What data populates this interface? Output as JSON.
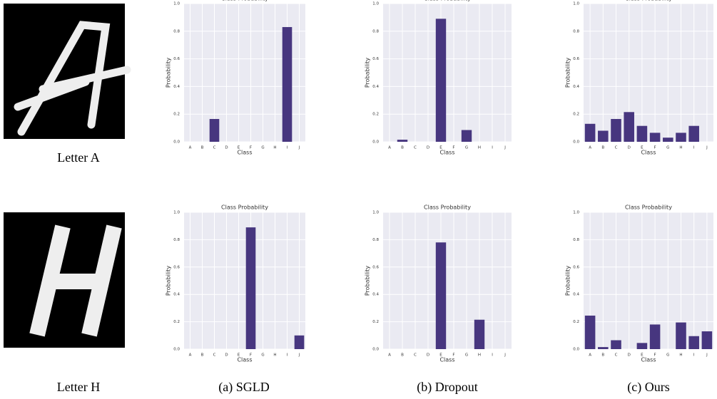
{
  "chart_data": [
    {
      "type": "bar",
      "title": "Class Probability",
      "x_label": "Class",
      "y_label": "Probability",
      "categories": [
        "A",
        "B",
        "C",
        "D",
        "E",
        "F",
        "G",
        "H",
        "I",
        "J"
      ],
      "values": [
        0,
        0,
        0.165,
        0,
        0,
        0,
        0,
        0,
        0.83,
        0
      ],
      "color": "#47367f",
      "ylim": [
        0,
        1
      ],
      "yticks": [
        {
          "value": 0,
          "label": "0.0"
        },
        0.2,
        0.4,
        0.6,
        0.8,
        {
          "value": 1,
          "label": "1.0"
        }
      ],
      "grid": true
    },
    {
      "type": "bar",
      "title": "Class Probability",
      "x_label": "Class",
      "y_label": "Probability",
      "categories": [
        "A",
        "B",
        "C",
        "D",
        "E",
        "F",
        "G",
        "H",
        "I",
        "J"
      ],
      "values": [
        0,
        0.015,
        0,
        0,
        0.89,
        0,
        0.085,
        0,
        0,
        0
      ],
      "color": "#47367f",
      "ylim": [
        0,
        1
      ],
      "yticks": [
        {
          "value": 0,
          "label": "0.0"
        },
        0.2,
        0.4,
        0.6,
        0.8,
        {
          "value": 1,
          "label": "1.0"
        }
      ],
      "grid": true
    },
    {
      "type": "bar",
      "title": "Class Probability",
      "x_label": "Class",
      "y_label": "Probability",
      "categories": [
        "A",
        "B",
        "C",
        "D",
        "E",
        "F",
        "G",
        "H",
        "I",
        "J"
      ],
      "values": [
        0.13,
        0.08,
        0.165,
        0.215,
        0.115,
        0.065,
        0.03,
        0.065,
        0.115,
        0
      ],
      "color": "#47367f",
      "ylim": [
        0,
        1
      ],
      "yticks": [
        {
          "value": 0,
          "label": "0.0"
        },
        0.2,
        0.4,
        0.6,
        0.8,
        {
          "value": 1,
          "label": "1.0"
        }
      ],
      "grid": true
    },
    {
      "type": "bar",
      "title": "Class Probability",
      "x_label": "Class",
      "y_label": "Probability",
      "categories": [
        "A",
        "B",
        "C",
        "D",
        "E",
        "F",
        "G",
        "H",
        "I",
        "J"
      ],
      "values": [
        0,
        0,
        0,
        0,
        0,
        0.89,
        0,
        0,
        0,
        0.1
      ],
      "color": "#47367f",
      "ylim": [
        0,
        1
      ],
      "yticks": [
        {
          "value": 0,
          "label": "0.0"
        },
        0.2,
        0.4,
        0.6,
        0.8,
        {
          "value": 1,
          "label": "1.0"
        }
      ],
      "grid": true
    },
    {
      "type": "bar",
      "title": "Class Probability",
      "x_label": "Class",
      "y_label": "Probability",
      "categories": [
        "A",
        "B",
        "C",
        "D",
        "E",
        "F",
        "G",
        "H",
        "I",
        "J"
      ],
      "values": [
        0,
        0,
        0,
        0,
        0.78,
        0,
        0,
        0.215,
        0,
        0
      ],
      "color": "#47367f",
      "ylim": [
        0,
        1
      ],
      "yticks": [
        {
          "value": 0,
          "label": "0.0"
        },
        0.2,
        0.4,
        0.6,
        0.8,
        {
          "value": 1,
          "label": "1.0"
        }
      ],
      "grid": true
    },
    {
      "type": "bar",
      "title": "Class Probability",
      "x_label": "Class",
      "y_label": "Probability",
      "categories": [
        "A",
        "B",
        "C",
        "D",
        "E",
        "F",
        "G",
        "H",
        "I",
        "J"
      ],
      "values": [
        0.245,
        0.015,
        0.065,
        0,
        0.045,
        0.18,
        0,
        0.195,
        0.095,
        0.13
      ],
      "color": "#47367f",
      "ylim": [
        0,
        1
      ],
      "yticks": [
        {
          "value": 0,
          "label": "0.0"
        },
        0.2,
        0.4,
        0.6,
        0.8,
        {
          "value": 1,
          "label": "1.0"
        }
      ],
      "grid": true
    }
  ],
  "images": [
    {
      "caption": "Letter A"
    },
    {
      "caption": "Letter H"
    }
  ],
  "captions": [
    "(a) SGLD",
    "(b) Dropout",
    "(c) Ours"
  ]
}
